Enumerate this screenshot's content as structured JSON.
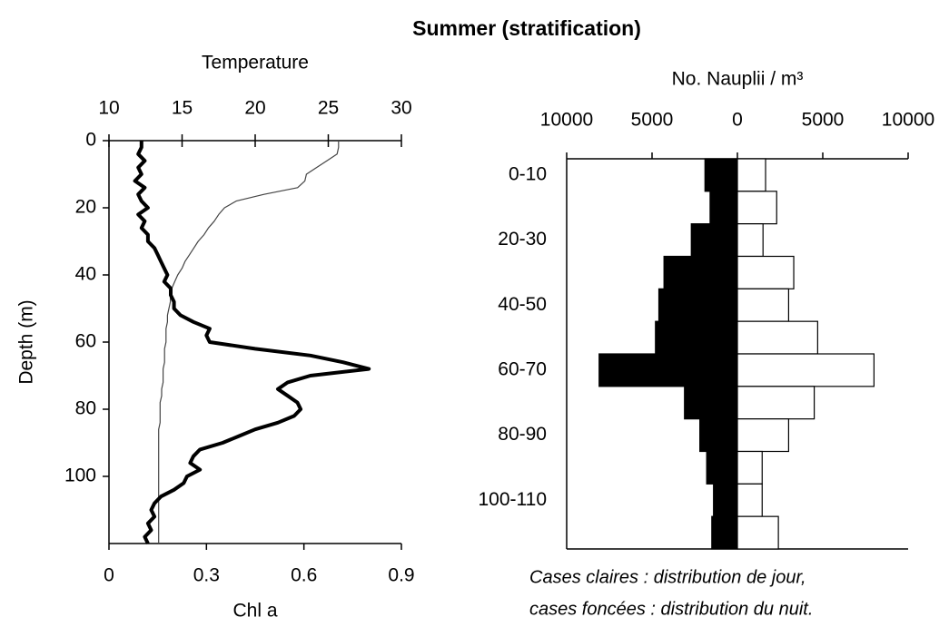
{
  "title": "Summer (stratification)",
  "chart_data": [
    {
      "type": "line",
      "xlabel_top": "Temperature",
      "xlabel": "Chl a",
      "ylabel": "Depth (m)",
      "y": [
        0,
        2,
        4,
        6,
        8,
        10,
        12,
        14,
        16,
        18,
        20,
        22,
        24,
        26,
        28,
        30,
        32,
        34,
        36,
        38,
        40,
        42,
        44,
        46,
        48,
        50,
        52,
        54,
        56,
        58,
        60,
        62,
        64,
        66,
        68,
        70,
        72,
        74,
        76,
        78,
        80,
        82,
        84,
        86,
        88,
        90,
        92,
        94,
        96,
        98,
        100,
        102,
        104,
        106,
        108,
        110,
        112,
        114,
        116,
        118,
        120
      ],
      "ylim": [
        0,
        120
      ],
      "yticks": [
        0,
        20,
        40,
        60,
        80,
        100
      ],
      "xlim": [
        0,
        0.9
      ],
      "xticks": [
        0,
        0.3,
        0.6,
        0.9
      ],
      "x2lim": [
        10,
        30
      ],
      "x2ticks": [
        10,
        15,
        20,
        25,
        30
      ],
      "series": [
        {
          "axis": "x2",
          "color": "#444444",
          "width": 1.2,
          "values": [
            25.7,
            25.7,
            25.6,
            24.9,
            24.2,
            23.5,
            23.4,
            22.9,
            20.6,
            18.7,
            17.9,
            17.5,
            17.2,
            16.8,
            16.5,
            16.1,
            15.8,
            15.5,
            15.2,
            15.0,
            14.7,
            14.5,
            14.3,
            14.2,
            14.2,
            14.1,
            14.0,
            14.0,
            13.9,
            13.9,
            13.9,
            13.8,
            13.8,
            13.8,
            13.7,
            13.7,
            13.7,
            13.6,
            13.6,
            13.5,
            13.5,
            13.5,
            13.5,
            13.4,
            13.4,
            13.4,
            13.4,
            13.4,
            13.4,
            13.4,
            13.4,
            13.4,
            13.4,
            13.4,
            13.4,
            13.4,
            13.4,
            13.4,
            13.4,
            13.4,
            13.4
          ]
        },
        {
          "color": "#000000",
          "width": 4,
          "values": [
            0.1,
            0.1,
            0.09,
            0.11,
            0.09,
            0.1,
            0.08,
            0.11,
            0.09,
            0.1,
            0.12,
            0.09,
            0.11,
            0.1,
            0.12,
            0.12,
            0.14,
            0.15,
            0.16,
            0.17,
            0.18,
            0.17,
            0.19,
            0.19,
            0.2,
            0.2,
            0.22,
            0.26,
            0.31,
            0.3,
            0.31,
            0.45,
            0.62,
            0.72,
            0.8,
            0.62,
            0.55,
            0.52,
            0.55,
            0.58,
            0.59,
            0.57,
            0.52,
            0.45,
            0.4,
            0.35,
            0.28,
            0.26,
            0.25,
            0.28,
            0.24,
            0.23,
            0.2,
            0.16,
            0.14,
            0.13,
            0.14,
            0.12,
            0.13,
            0.11,
            0.12
          ]
        }
      ]
    },
    {
      "type": "hbar",
      "xlabel": "No. Nauplii / m³",
      "categories": [
        "0-10",
        null,
        "20-30",
        null,
        "40-50",
        null,
        "60-70",
        null,
        "80-90",
        null,
        "100-110",
        null
      ],
      "xlim": [
        -10000,
        10000
      ],
      "xticks": [
        {
          "value": -10000,
          "label": "10000"
        },
        {
          "value": -5000,
          "label": "5000"
        },
        0,
        5000,
        10000
      ],
      "series": [
        {
          "color": "#000000",
          "values": [
            -1900,
            -1600,
            -2700,
            -4300,
            -4600,
            -4800,
            -8100,
            -3100,
            -2200,
            -1800,
            -1400,
            -1500
          ]
        },
        {
          "color": "#ffffff",
          "values": [
            1650,
            2300,
            1500,
            3300,
            3000,
            4700,
            8000,
            4500,
            3000,
            1450,
            1450,
            2400
          ]
        }
      ],
      "caption": [
        "Cases claires : distribution de jour,",
        "cases foncées : distribution du nuit."
      ]
    }
  ]
}
